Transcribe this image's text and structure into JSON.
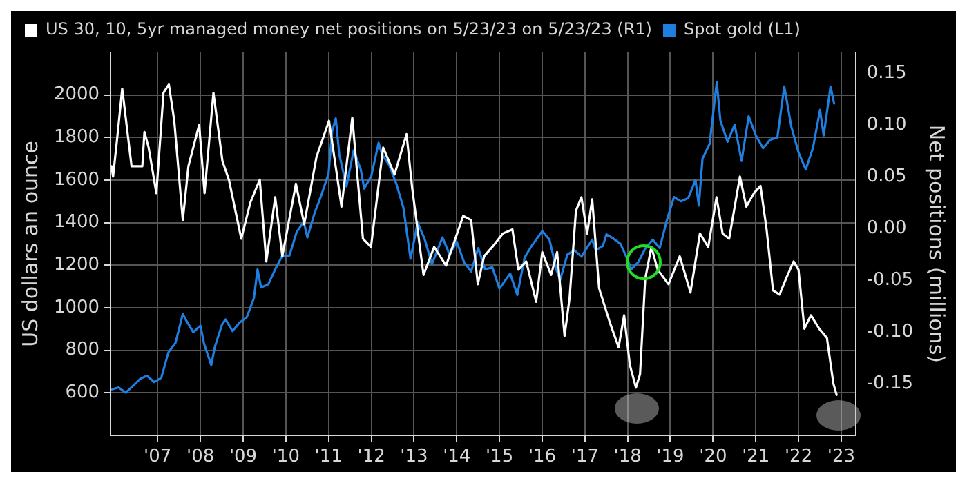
{
  "chart_data": {
    "type": "line",
    "ylabel": "US dollars an ounce",
    "y2label": "Net positions (millions)",
    "legend": "top left",
    "grid": true,
    "xlim": [
      "2006-05-25",
      "2023-11-01"
    ],
    "xticks": [
      {
        "value": "2007-07-01",
        "label": "'07"
      },
      {
        "value": "2008-07-01",
        "label": "'08"
      },
      {
        "value": "2009-07-01",
        "label": "'09"
      },
      {
        "value": "2010-07-01",
        "label": "'10"
      },
      {
        "value": "2011-07-01",
        "label": "'11"
      },
      {
        "value": "2012-07-01",
        "label": "'12"
      },
      {
        "value": "2013-07-01",
        "label": "'13"
      },
      {
        "value": "2014-07-01",
        "label": "'14"
      },
      {
        "value": "2015-07-01",
        "label": "'15"
      },
      {
        "value": "2016-07-01",
        "label": "'16"
      },
      {
        "value": "2017-07-01",
        "label": "'17"
      },
      {
        "value": "2018-07-01",
        "label": "'18"
      },
      {
        "value": "2019-07-01",
        "label": "'19"
      },
      {
        "value": "2020-07-01",
        "label": "'20"
      },
      {
        "value": "2021-07-01",
        "label": "'21"
      },
      {
        "value": "2022-07-01",
        "label": "'22"
      },
      {
        "value": "2023-07-01",
        "label": "'23"
      }
    ],
    "ylim": [
      400,
      2200
    ],
    "yticks": [
      600,
      800,
      1000,
      1200,
      1400,
      1600,
      1800,
      2000
    ],
    "y2lim": [
      -0.2,
      0.17
    ],
    "y2ticks": [
      {
        "value": -0.15,
        "label": "-0.15"
      },
      {
        "value": -0.1,
        "label": "-0.10"
      },
      {
        "value": -0.05,
        "label": "-0.05"
      },
      {
        "value": 0,
        "label": "0.00"
      },
      {
        "value": 0.05,
        "label": "0.05"
      },
      {
        "value": 0.1,
        "label": "0.10"
      },
      {
        "value": 0.15,
        "label": "0.15"
      }
    ],
    "series": [
      {
        "name": "US 30, 10, 5yr managed money net positions on 5/23/23 on 5/23/23 (R1)",
        "color": "#ffffff",
        "axis": "y2",
        "x": [
          "2006-06-01",
          "2006-06-15",
          "2006-07-20",
          "2006-09-01",
          "2006-11-20",
          "2007-02-20",
          "2007-03-10",
          "2007-04-15",
          "2007-06-20",
          "2007-08-20",
          "2007-10-05",
          "2007-11-20",
          "2008-02-01",
          "2008-03-20",
          "2008-06-20",
          "2008-08-05",
          "2008-10-20",
          "2009-01-05",
          "2009-03-01",
          "2009-06-15",
          "2009-09-01",
          "2009-11-20",
          "2010-01-15",
          "2010-04-01",
          "2010-06-01",
          "2010-09-25",
          "2010-12-05",
          "2011-03-20",
          "2011-07-05",
          "2011-10-20",
          "2012-01-20",
          "2012-04-20",
          "2012-06-28",
          "2012-10-10",
          "2013-01-15",
          "2013-04-28",
          "2013-06-15",
          "2013-09-20",
          "2013-12-20",
          "2014-04-01",
          "2014-08-25",
          "2014-11-01",
          "2014-12-28",
          "2015-02-20",
          "2015-05-01",
          "2015-07-30",
          "2015-10-20",
          "2015-12-10",
          "2016-02-15",
          "2016-05-10",
          "2016-07-01",
          "2016-09-15",
          "2016-11-05",
          "2017-01-08",
          "2017-02-20",
          "2017-04-15",
          "2017-06-01",
          "2017-07-20",
          "2017-09-01",
          "2017-10-30",
          "2018-01-30",
          "2018-04-15",
          "2018-06-01",
          "2018-07-20",
          "2018-09-10",
          "2018-10-15",
          "2018-11-28",
          "2019-01-20",
          "2019-03-15",
          "2019-06-15",
          "2019-09-20",
          "2019-12-20",
          "2020-03-10",
          "2020-05-20",
          "2020-07-30",
          "2020-09-20",
          "2020-11-15",
          "2021-02-15",
          "2021-04-10",
          "2021-06-15",
          "2021-08-10",
          "2021-10-01",
          "2021-11-25",
          "2022-01-20",
          "2022-03-15",
          "2022-05-20",
          "2022-07-01",
          "2022-08-20",
          "2022-10-15",
          "2022-12-25",
          "2023-03-01",
          "2023-04-25",
          "2023-05-23"
        ],
        "values": [
          0.06,
          0.05,
          0.087,
          0.135,
          0.06,
          0.06,
          0.093,
          0.078,
          0.034,
          0.131,
          0.139,
          0.104,
          0.008,
          0.06,
          0.1,
          0.034,
          0.131,
          0.065,
          0.047,
          -0.01,
          0.025,
          0.047,
          -0.032,
          0.03,
          -0.027,
          0.043,
          0.004,
          0.069,
          0.104,
          0.021,
          0.107,
          -0.01,
          -0.018,
          0.078,
          0.052,
          0.091,
          0.039,
          -0.045,
          -0.018,
          -0.036,
          0.012,
          0.008,
          -0.054,
          -0.027,
          -0.018,
          -0.005,
          -0.001,
          -0.04,
          -0.032,
          -0.071,
          -0.023,
          -0.045,
          -0.023,
          -0.104,
          -0.067,
          0.017,
          0.03,
          -0.005,
          0.028,
          -0.058,
          -0.091,
          -0.115,
          -0.084,
          -0.132,
          -0.154,
          -0.141,
          -0.049,
          -0.018,
          -0.04,
          -0.054,
          -0.027,
          -0.062,
          -0.005,
          -0.018,
          0.03,
          -0.005,
          -0.01,
          0.05,
          0.021,
          0.034,
          0.041,
          -0.001,
          -0.06,
          -0.064,
          -0.049,
          -0.032,
          -0.04,
          -0.097,
          -0.084,
          -0.097,
          -0.106,
          -0.15,
          -0.161
        ]
      },
      {
        "name": "Spot gold (L1)",
        "color": "#1e7fe0",
        "axis": "y",
        "x": [
          "2006-06",
          "2006-08",
          "2006-10",
          "2006-12",
          "2007-02",
          "2007-04",
          "2007-06",
          "2007-08",
          "2007-10",
          "2007-12",
          "2008-02",
          "2008-03",
          "2008-05",
          "2008-07",
          "2008-08",
          "2008-10",
          "2008-11",
          "2009-01",
          "2009-02",
          "2009-04",
          "2009-06",
          "2009-08",
          "2009-10",
          "2009-11",
          "2009-12",
          "2010-02",
          "2010-04",
          "2010-06",
          "2010-08",
          "2010-10",
          "2010-12",
          "2011-01",
          "2011-03",
          "2011-05",
          "2011-07",
          "2011-08",
          "2011-09",
          "2011-10",
          "2011-12",
          "2012-02",
          "2012-04",
          "2012-05",
          "2012-07",
          "2012-09",
          "2012-10",
          "2012-12",
          "2013-02",
          "2013-04",
          "2013-06",
          "2013-08",
          "2013-10",
          "2013-12",
          "2014-03",
          "2014-05",
          "2014-07",
          "2014-09",
          "2014-11",
          "2015-01",
          "2015-03",
          "2015-05",
          "2015-07",
          "2015-10",
          "2015-12",
          "2016-02",
          "2016-04",
          "2016-07",
          "2016-09",
          "2016-11",
          "2016-12",
          "2017-02",
          "2017-04",
          "2017-06",
          "2017-09",
          "2017-10",
          "2017-12",
          "2018-01",
          "2018-03",
          "2018-05",
          "2018-07",
          "2018-08",
          "2018-10",
          "2018-12",
          "2019-02",
          "2019-04",
          "2019-06",
          "2019-08",
          "2019-10",
          "2019-12",
          "2020-02",
          "2020-03",
          "2020-04",
          "2020-06",
          "2020-08",
          "2020-09",
          "2020-11",
          "2021-01",
          "2021-03",
          "2021-05",
          "2021-07",
          "2021-09",
          "2021-11",
          "2022-01",
          "2022-03",
          "2022-05",
          "2022-07",
          "2022-09",
          "2022-11",
          "2023-01",
          "2023-02",
          "2023-04",
          "2023-05"
        ],
        "values": [
          615,
          625,
          600,
          632,
          665,
          680,
          650,
          670,
          790,
          835,
          970,
          940,
          885,
          915,
          830,
          730,
          815,
          920,
          945,
          890,
          930,
          955,
          1045,
          1180,
          1095,
          1110,
          1180,
          1245,
          1245,
          1355,
          1405,
          1330,
          1440,
          1530,
          1630,
          1830,
          1890,
          1720,
          1570,
          1740,
          1650,
          1560,
          1620,
          1775,
          1720,
          1670,
          1580,
          1470,
          1230,
          1400,
          1320,
          1205,
          1330,
          1250,
          1310,
          1215,
          1170,
          1280,
          1180,
          1190,
          1090,
          1160,
          1060,
          1235,
          1290,
          1360,
          1320,
          1175,
          1130,
          1250,
          1270,
          1240,
          1320,
          1270,
          1290,
          1345,
          1325,
          1300,
          1225,
          1180,
          1215,
          1280,
          1320,
          1280,
          1410,
          1520,
          1500,
          1515,
          1600,
          1480,
          1700,
          1770,
          2060,
          1880,
          1780,
          1860,
          1690,
          1900,
          1810,
          1750,
          1790,
          1800,
          2040,
          1850,
          1730,
          1650,
          1750,
          1930,
          1810,
          2040,
          1960
        ]
      }
    ]
  }
}
